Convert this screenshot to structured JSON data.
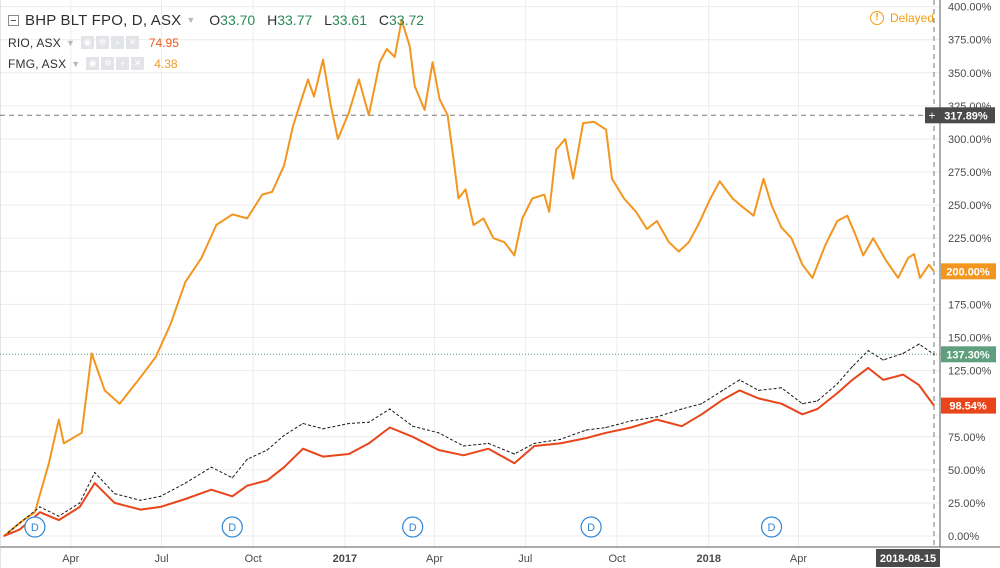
{
  "legend": {
    "main": {
      "symbol": "BHP BLT FPO, D, ASX",
      "o_label": "O",
      "o": "33.70",
      "h_label": "H",
      "h": "33.77",
      "l_label": "L",
      "l": "33.61",
      "c_label": "C",
      "c": "33.72"
    },
    "rio": {
      "symbol": "RIO, ASX",
      "value": "74.95"
    },
    "fmg": {
      "symbol": "FMG, ASX",
      "value": "4.38"
    }
  },
  "status": {
    "delayed": "Delayed"
  },
  "colors": {
    "fmg": "#f3961f",
    "bhp": "#e8451a",
    "rio": "#1a1a1a",
    "grid": "#ececec",
    "rio_badge": "#5f9f7d"
  },
  "chart_data": {
    "type": "line",
    "y_unit": "percent",
    "ylim": [
      -3,
      405
    ],
    "y_ticks": [
      "400.00%",
      "375.00%",
      "350.00%",
      "325.00%",
      "300.00%",
      "275.00%",
      "250.00%",
      "225.00%",
      "200.00%",
      "175.00%",
      "150.00%",
      "125.00%",
      "100.00%",
      "75.00%",
      "50.00%",
      "25.00%",
      "0.00%"
    ],
    "y_tick_values": [
      400,
      375,
      350,
      325,
      300,
      275,
      250,
      225,
      200,
      175,
      150,
      125,
      100,
      75,
      50,
      25,
      0
    ],
    "x_range": [
      "2016-01-25",
      "2018-08-15"
    ],
    "x_ticks": [
      {
        "date": "2016-04-01",
        "label": "Apr"
      },
      {
        "date": "2016-07-01",
        "label": "Jul"
      },
      {
        "date": "2016-10-01",
        "label": "Oct"
      },
      {
        "date": "2017-01-01",
        "label": "2017"
      },
      {
        "date": "2017-04-01",
        "label": "Apr"
      },
      {
        "date": "2017-07-01",
        "label": "Jul"
      },
      {
        "date": "2017-10-01",
        "label": "Oct"
      },
      {
        "date": "2018-01-01",
        "label": "2018"
      },
      {
        "date": "2018-04-01",
        "label": "Apr"
      }
    ],
    "x_cursor_label": "2018-08-15",
    "crosshair": {
      "value": 317.89,
      "label": "317.89%"
    },
    "dividends": [
      {
        "date": "2016-02-25",
        "label": "D"
      },
      {
        "date": "2016-09-10",
        "label": "D"
      },
      {
        "date": "2017-03-10",
        "label": "D"
      },
      {
        "date": "2017-09-05",
        "label": "D"
      },
      {
        "date": "2018-03-05",
        "label": "D"
      }
    ],
    "series": [
      {
        "name": "FMG, ASX",
        "style": "solid",
        "color": "#f3961f",
        "last_label": "200.00%",
        "points": [
          [
            "2016-01-25",
            0
          ],
          [
            "2016-02-10",
            10
          ],
          [
            "2016-02-25",
            18
          ],
          [
            "2016-03-10",
            55
          ],
          [
            "2016-03-20",
            88
          ],
          [
            "2016-03-25",
            70
          ],
          [
            "2016-04-12",
            78
          ],
          [
            "2016-04-22",
            138
          ],
          [
            "2016-05-05",
            110
          ],
          [
            "2016-05-20",
            100
          ],
          [
            "2016-06-10",
            120
          ],
          [
            "2016-06-25",
            135
          ],
          [
            "2016-07-10",
            160
          ],
          [
            "2016-07-25",
            192
          ],
          [
            "2016-08-10",
            210
          ],
          [
            "2016-08-25",
            235
          ],
          [
            "2016-09-10",
            243
          ],
          [
            "2016-09-25",
            240
          ],
          [
            "2016-10-10",
            258
          ],
          [
            "2016-10-20",
            260
          ],
          [
            "2016-11-01",
            280
          ],
          [
            "2016-11-10",
            310
          ],
          [
            "2016-11-25",
            345
          ],
          [
            "2016-12-01",
            332
          ],
          [
            "2016-12-10",
            360
          ],
          [
            "2016-12-18",
            325
          ],
          [
            "2016-12-25",
            300
          ],
          [
            "2017-01-05",
            320
          ],
          [
            "2017-01-15",
            345
          ],
          [
            "2017-01-25",
            318
          ],
          [
            "2017-02-05",
            358
          ],
          [
            "2017-02-12",
            368
          ],
          [
            "2017-02-20",
            362
          ],
          [
            "2017-02-27",
            390
          ],
          [
            "2017-03-07",
            370
          ],
          [
            "2017-03-12",
            340
          ],
          [
            "2017-03-22",
            322
          ],
          [
            "2017-03-30",
            358
          ],
          [
            "2017-04-06",
            330
          ],
          [
            "2017-04-14",
            318
          ],
          [
            "2017-04-20",
            285
          ],
          [
            "2017-04-25",
            255
          ],
          [
            "2017-05-02",
            262
          ],
          [
            "2017-05-10",
            235
          ],
          [
            "2017-05-20",
            240
          ],
          [
            "2017-05-30",
            225
          ],
          [
            "2017-06-10",
            222
          ],
          [
            "2017-06-20",
            212
          ],
          [
            "2017-06-28",
            240
          ],
          [
            "2017-07-08",
            255
          ],
          [
            "2017-07-20",
            258
          ],
          [
            "2017-07-25",
            245
          ],
          [
            "2017-08-01",
            292
          ],
          [
            "2017-08-10",
            300
          ],
          [
            "2017-08-18",
            270
          ],
          [
            "2017-08-28",
            312
          ],
          [
            "2017-09-08",
            313
          ],
          [
            "2017-09-20",
            307
          ],
          [
            "2017-09-26",
            270
          ],
          [
            "2017-10-08",
            255
          ],
          [
            "2017-10-20",
            245
          ],
          [
            "2017-10-31",
            232
          ],
          [
            "2017-11-10",
            238
          ],
          [
            "2017-11-22",
            222
          ],
          [
            "2017-12-02",
            215
          ],
          [
            "2017-12-12",
            222
          ],
          [
            "2017-12-22",
            236
          ],
          [
            "2018-01-02",
            254
          ],
          [
            "2018-01-12",
            268
          ],
          [
            "2018-01-25",
            255
          ],
          [
            "2018-02-05",
            248
          ],
          [
            "2018-02-15",
            242
          ],
          [
            "2018-02-25",
            270
          ],
          [
            "2018-03-05",
            250
          ],
          [
            "2018-03-15",
            233
          ],
          [
            "2018-03-25",
            225
          ],
          [
            "2018-04-05",
            205
          ],
          [
            "2018-04-15",
            195
          ],
          [
            "2018-04-28",
            220
          ],
          [
            "2018-05-10",
            238
          ],
          [
            "2018-05-20",
            242
          ],
          [
            "2018-05-28",
            228
          ],
          [
            "2018-06-05",
            212
          ],
          [
            "2018-06-15",
            225
          ],
          [
            "2018-06-28",
            208
          ],
          [
            "2018-07-10",
            195
          ],
          [
            "2018-07-20",
            210
          ],
          [
            "2018-07-26",
            213
          ],
          [
            "2018-08-01",
            195
          ],
          [
            "2018-08-10",
            205
          ],
          [
            "2018-08-15",
            200
          ]
        ]
      },
      {
        "name": "RIO, ASX",
        "style": "dashed",
        "color": "#1a1a1a",
        "last_label": "137.30%",
        "points": [
          [
            "2016-01-25",
            0
          ],
          [
            "2016-02-10",
            10
          ],
          [
            "2016-03-01",
            22
          ],
          [
            "2016-03-20",
            15
          ],
          [
            "2016-04-10",
            25
          ],
          [
            "2016-04-25",
            48
          ],
          [
            "2016-05-15",
            32
          ],
          [
            "2016-06-10",
            27
          ],
          [
            "2016-06-30",
            30
          ],
          [
            "2016-07-25",
            40
          ],
          [
            "2016-08-20",
            52
          ],
          [
            "2016-09-10",
            44
          ],
          [
            "2016-09-25",
            58
          ],
          [
            "2016-10-15",
            65
          ],
          [
            "2016-11-01",
            76
          ],
          [
            "2016-11-20",
            85
          ],
          [
            "2016-12-10",
            81
          ],
          [
            "2017-01-05",
            85
          ],
          [
            "2017-01-25",
            86
          ],
          [
            "2017-02-15",
            96
          ],
          [
            "2017-03-10",
            83
          ],
          [
            "2017-04-05",
            78
          ],
          [
            "2017-04-30",
            68
          ],
          [
            "2017-05-25",
            70
          ],
          [
            "2017-06-20",
            62
          ],
          [
            "2017-07-10",
            70
          ],
          [
            "2017-08-05",
            73
          ],
          [
            "2017-08-31",
            80
          ],
          [
            "2017-09-20",
            82
          ],
          [
            "2017-10-15",
            87
          ],
          [
            "2017-11-10",
            90
          ],
          [
            "2017-12-05",
            96
          ],
          [
            "2017-12-25",
            100
          ],
          [
            "2018-01-15",
            110
          ],
          [
            "2018-02-01",
            118
          ],
          [
            "2018-02-20",
            110
          ],
          [
            "2018-03-15",
            112
          ],
          [
            "2018-04-05",
            100
          ],
          [
            "2018-04-20",
            102
          ],
          [
            "2018-05-10",
            115
          ],
          [
            "2018-05-25",
            128
          ],
          [
            "2018-06-10",
            140
          ],
          [
            "2018-06-25",
            133
          ],
          [
            "2018-07-15",
            138
          ],
          [
            "2018-07-31",
            145
          ],
          [
            "2018-08-15",
            137.3
          ]
        ]
      },
      {
        "name": "BHP BLT FPO, D, ASX",
        "style": "solid",
        "color": "#e8451a",
        "last_label": "98.54%",
        "points": [
          [
            "2016-01-25",
            0
          ],
          [
            "2016-02-10",
            5
          ],
          [
            "2016-03-01",
            18
          ],
          [
            "2016-03-20",
            12
          ],
          [
            "2016-04-10",
            22
          ],
          [
            "2016-04-25",
            40
          ],
          [
            "2016-05-15",
            25
          ],
          [
            "2016-06-10",
            20
          ],
          [
            "2016-06-30",
            22
          ],
          [
            "2016-07-25",
            28
          ],
          [
            "2016-08-20",
            35
          ],
          [
            "2016-09-10",
            30
          ],
          [
            "2016-09-25",
            38
          ],
          [
            "2016-10-15",
            42
          ],
          [
            "2016-11-01",
            52
          ],
          [
            "2016-11-20",
            66
          ],
          [
            "2016-12-10",
            60
          ],
          [
            "2017-01-05",
            62
          ],
          [
            "2017-01-25",
            70
          ],
          [
            "2017-02-15",
            82
          ],
          [
            "2017-03-10",
            75
          ],
          [
            "2017-04-05",
            65
          ],
          [
            "2017-04-30",
            61
          ],
          [
            "2017-05-25",
            66
          ],
          [
            "2017-06-20",
            55
          ],
          [
            "2017-07-10",
            68
          ],
          [
            "2017-08-05",
            70
          ],
          [
            "2017-08-31",
            74
          ],
          [
            "2017-09-20",
            78
          ],
          [
            "2017-10-15",
            82
          ],
          [
            "2017-11-10",
            88
          ],
          [
            "2017-12-05",
            83
          ],
          [
            "2017-12-25",
            92
          ],
          [
            "2018-01-15",
            103
          ],
          [
            "2018-02-01",
            110
          ],
          [
            "2018-02-20",
            104
          ],
          [
            "2018-03-15",
            100
          ],
          [
            "2018-04-05",
            92
          ],
          [
            "2018-04-20",
            96
          ],
          [
            "2018-05-10",
            108
          ],
          [
            "2018-05-25",
            118
          ],
          [
            "2018-06-10",
            127
          ],
          [
            "2018-06-25",
            118
          ],
          [
            "2018-07-15",
            122
          ],
          [
            "2018-07-31",
            114
          ],
          [
            "2018-08-15",
            98.54
          ]
        ]
      }
    ],
    "grid": true
  }
}
